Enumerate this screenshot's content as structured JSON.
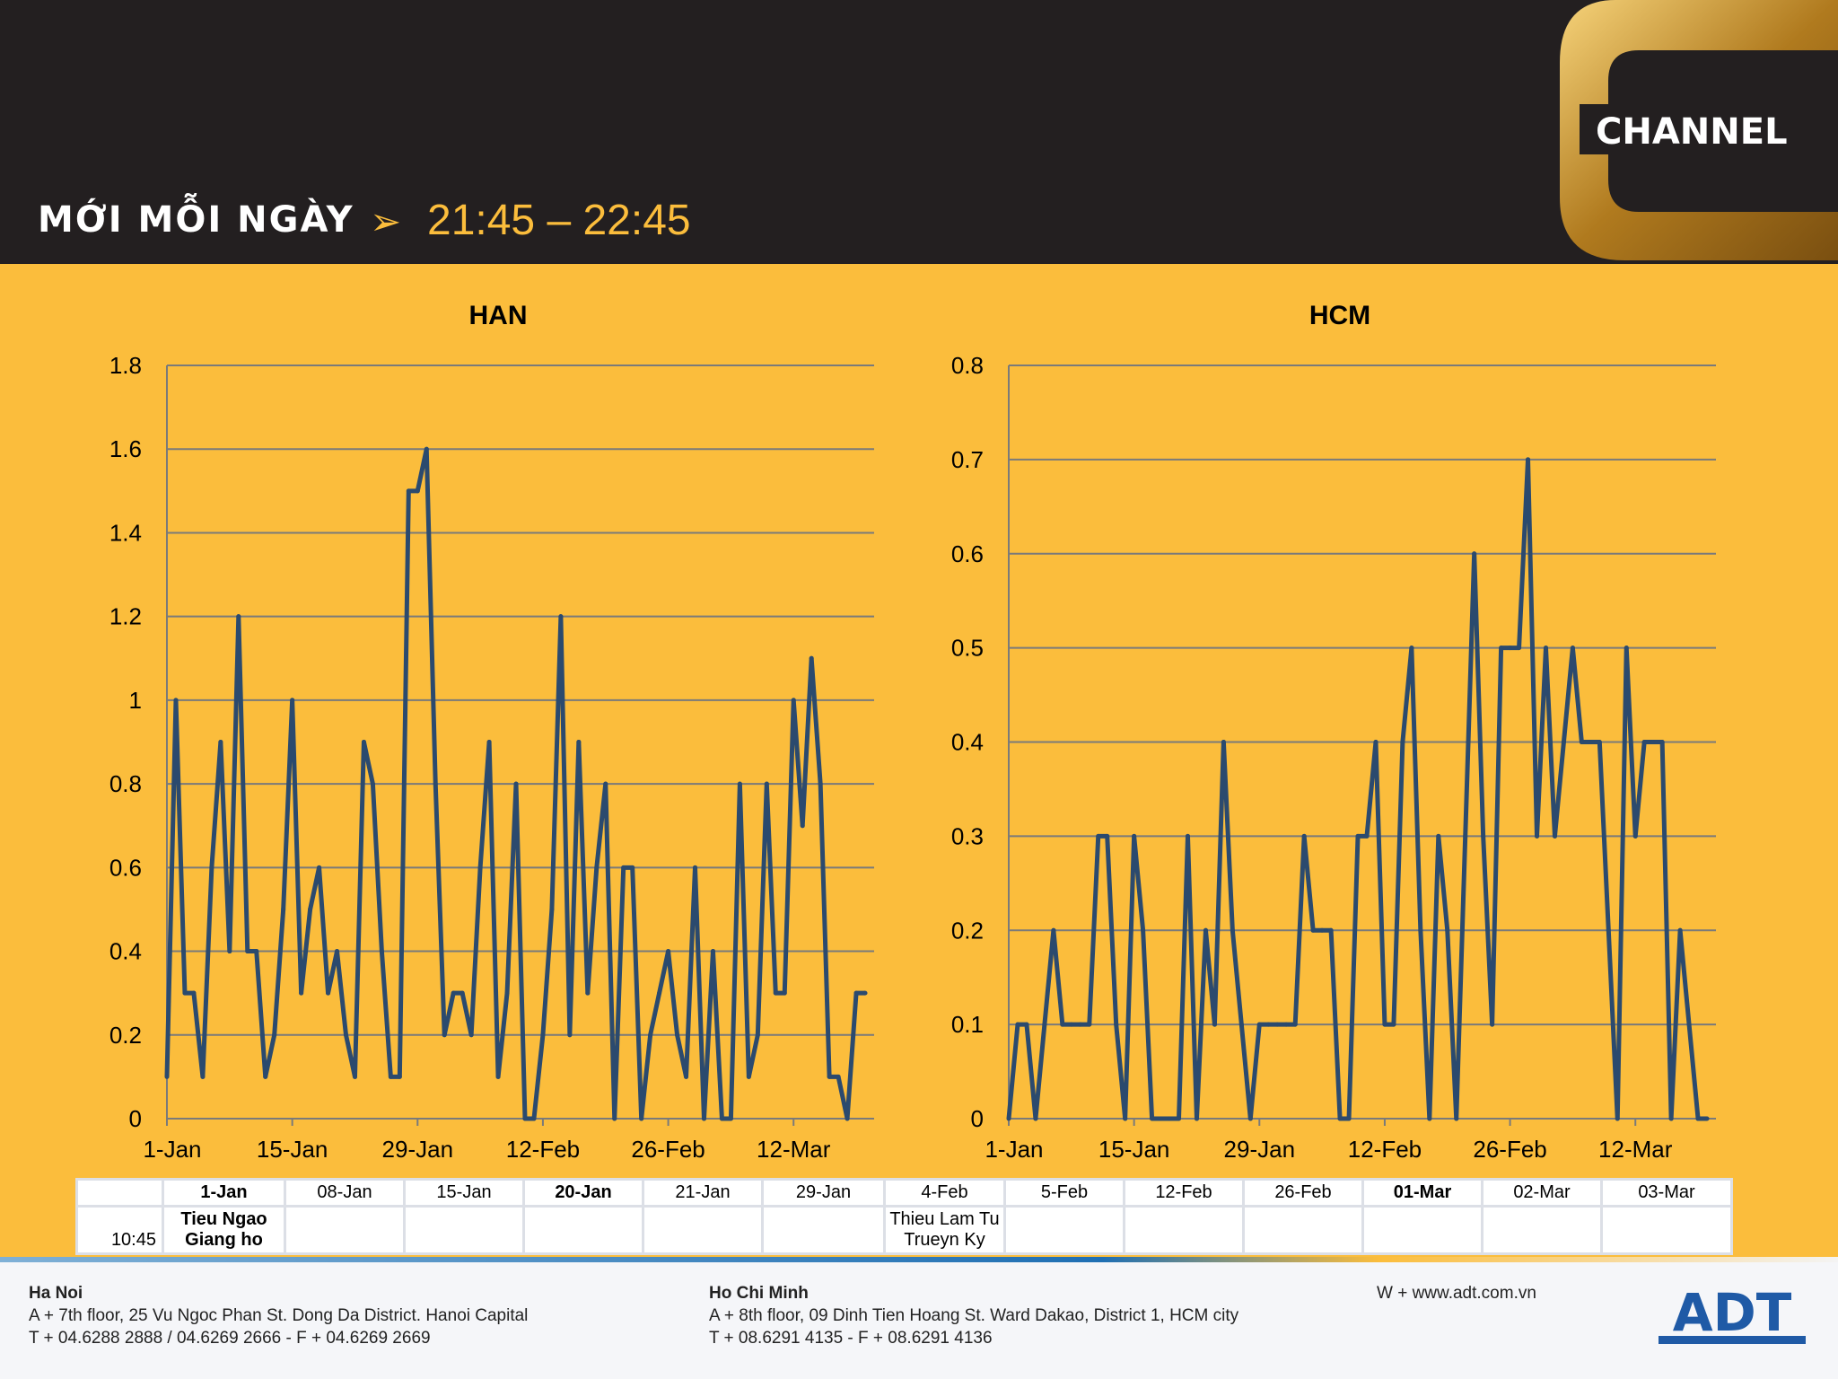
{
  "header": {
    "tagline": "MỚI MỖI NGÀY",
    "time_arrow": "➢",
    "time_range": "21:45 – 22:45",
    "logo_text": "CHANNEL"
  },
  "colors": {
    "background": "#fbbd3c",
    "header": "#231f20",
    "line": "#2b4a6e",
    "grid": "#7a7a7a"
  },
  "chart_data": [
    {
      "type": "line",
      "title": "HAN",
      "ylim": [
        0,
        1.8
      ],
      "yticks": [
        0,
        0.2,
        0.4,
        0.6,
        0.8,
        1,
        1.2,
        1.4,
        1.6,
        1.8
      ],
      "ytick_labels": [
        "0",
        "0.2",
        "0.4",
        "0.6",
        "0.8",
        "1",
        "1.2",
        "1.4",
        "1.6",
        "1.8"
      ],
      "xlim": [
        0,
        79
      ],
      "xticks": [
        0,
        14,
        28,
        42,
        56,
        70
      ],
      "xtick_labels": [
        "1-Jan",
        "15-Jan",
        "29-Jan",
        "12-Feb",
        "26-Feb",
        "12-Mar"
      ],
      "grid": true,
      "values": [
        0.1,
        1.0,
        0.3,
        0.3,
        0.1,
        0.6,
        0.9,
        0.4,
        1.2,
        0.4,
        0.4,
        0.1,
        0.2,
        0.5,
        1.0,
        0.3,
        0.5,
        0.6,
        0.3,
        0.4,
        0.2,
        0.1,
        0.9,
        0.8,
        0.4,
        0.1,
        0.1,
        1.5,
        1.5,
        1.6,
        0.8,
        0.2,
        0.3,
        0.3,
        0.2,
        0.6,
        0.9,
        0.1,
        0.3,
        0.8,
        0.0,
        0.0,
        0.2,
        0.5,
        1.2,
        0.2,
        0.9,
        0.3,
        0.6,
        0.8,
        0.0,
        0.6,
        0.6,
        0.0,
        0.2,
        0.3,
        0.4,
        0.2,
        0.1,
        0.6,
        0.0,
        0.4,
        0.0,
        0.0,
        0.8,
        0.1,
        0.2,
        0.8,
        0.3,
        0.3,
        1.0,
        0.7,
        1.1,
        0.8,
        0.1,
        0.1,
        0.0,
        0.3,
        0.3
      ]
    },
    {
      "type": "line",
      "title": "HCM",
      "ylim": [
        0,
        0.8
      ],
      "yticks": [
        0,
        0.1,
        0.2,
        0.3,
        0.4,
        0.5,
        0.6,
        0.7,
        0.8
      ],
      "ytick_labels": [
        "0",
        "0.1",
        "0.2",
        "0.3",
        "0.4",
        "0.5",
        "0.6",
        "0.7",
        "0.8"
      ],
      "xlim": [
        0,
        79
      ],
      "xticks": [
        0,
        14,
        28,
        42,
        56,
        70
      ],
      "xtick_labels": [
        "1-Jan",
        "15-Jan",
        "29-Jan",
        "12-Feb",
        "26-Feb",
        "12-Mar"
      ],
      "grid": true,
      "values": [
        0.0,
        0.1,
        0.1,
        0.0,
        0.1,
        0.2,
        0.1,
        0.1,
        0.1,
        0.1,
        0.3,
        0.3,
        0.1,
        0.0,
        0.3,
        0.2,
        0.0,
        0.0,
        0.0,
        0.0,
        0.3,
        0.0,
        0.2,
        0.1,
        0.4,
        0.2,
        0.1,
        0.0,
        0.1,
        0.1,
        0.1,
        0.1,
        0.1,
        0.3,
        0.2,
        0.2,
        0.2,
        0.0,
        0.0,
        0.3,
        0.3,
        0.4,
        0.1,
        0.1,
        0.4,
        0.5,
        0.2,
        0.0,
        0.3,
        0.2,
        0.0,
        0.3,
        0.6,
        0.3,
        0.1,
        0.5,
        0.5,
        0.5,
        0.7,
        0.3,
        0.5,
        0.3,
        0.4,
        0.5,
        0.4,
        0.4,
        0.4,
        0.2,
        0.0,
        0.5,
        0.3,
        0.4,
        0.4,
        0.4,
        0.0,
        0.2,
        0.1,
        0.0,
        0.0
      ]
    }
  ],
  "schedule": {
    "headers": [
      "",
      "1-Jan",
      "08-Jan",
      "15-Jan",
      "20-Jan",
      "21-Jan",
      "29-Jan",
      "4-Feb",
      "5-Feb",
      "12-Feb",
      "26-Feb",
      "01-Mar",
      "02-Mar",
      "03-Mar"
    ],
    "time": "10:45",
    "cells": [
      "Tieu Ngao Giang ho",
      "",
      "",
      "",
      "",
      "",
      "Thieu Lam Tu Trueyn Ky",
      "",
      "",
      "",
      "",
      "",
      ""
    ]
  },
  "footer": {
    "hanoi": {
      "city": "Ha Noi",
      "line1": "A + 7th floor, 25 Vu Ngoc Phan St. Dong Da District. Hanoi Capital",
      "line2": "T + 04.6288 2888 / 04.6269 2666 - F + 04.6269 2669"
    },
    "hcm": {
      "city": "Ho Chi Minh",
      "line1": "A + 8th floor, 09 Dinh Tien Hoang St. Ward Dakao, District 1, HCM city",
      "line2": "T + 08.6291 4135 - F + 08.6291 4136"
    },
    "web": "W + www.adt.com.vn",
    "logo": "ADT"
  }
}
